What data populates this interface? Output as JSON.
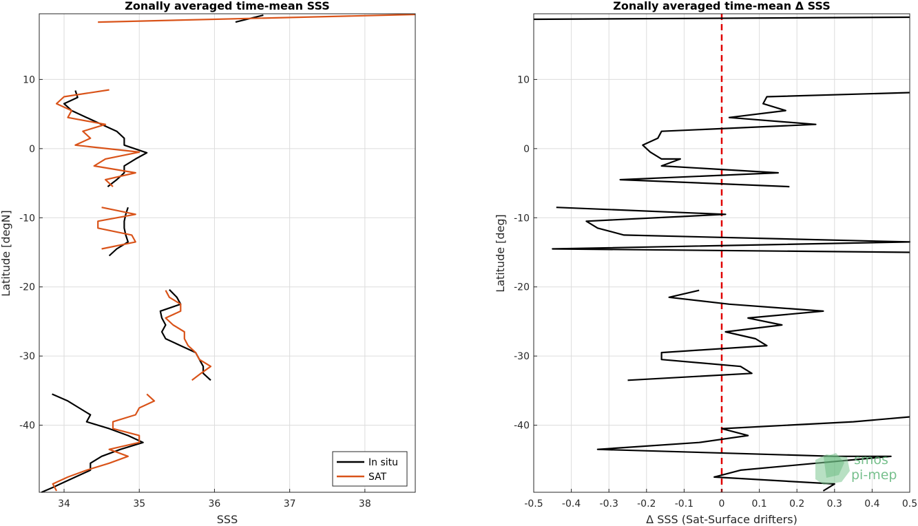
{
  "chart_data": [
    {
      "type": "line",
      "title": "Zonally averaged time-mean SSS",
      "xlabel": "SSS",
      "ylabel": "Latitude [degN]",
      "xlim": [
        33.67,
        38.67
      ],
      "ylim": [
        -49.7,
        19.5
      ],
      "xticks": [
        34,
        35,
        36,
        37,
        38
      ],
      "xtick_labels": [
        "34",
        "35",
        "36",
        "37",
        "38"
      ],
      "yticks": [
        -40,
        -30,
        -20,
        -10,
        0,
        10
      ],
      "ytick_labels": [
        "-40",
        "-30",
        "-20",
        "-10",
        "0",
        "10"
      ],
      "grid": true,
      "legend": {
        "placement": "bottom-right",
        "entries": [
          "In situ",
          "SAT"
        ]
      },
      "series": [
        {
          "name": "In situ",
          "color": "#000000",
          "segments": [
            [
              [
                36.28,
                18.3
              ],
              [
                36.65,
                19.3
              ]
            ],
            [
              [
                34.15,
                8.4
              ],
              [
                34.18,
                7.4
              ],
              [
                34.0,
                6.5
              ],
              [
                34.1,
                5.5
              ],
              [
                34.3,
                4.5
              ],
              [
                34.5,
                3.5
              ],
              [
                34.7,
                2.5
              ],
              [
                34.8,
                1.5
              ],
              [
                34.8,
                0.5
              ],
              [
                35.1,
                -0.6
              ],
              [
                34.95,
                -1.5
              ],
              [
                34.8,
                -2.5
              ],
              [
                34.8,
                -3.5
              ],
              [
                34.7,
                -4.5
              ],
              [
                34.58,
                -5.5
              ]
            ],
            [
              [
                34.85,
                -8.5
              ],
              [
                34.82,
                -9.5
              ],
              [
                34.8,
                -10.5
              ],
              [
                34.8,
                -11.5
              ],
              [
                34.82,
                -12.5
              ],
              [
                34.85,
                -13.5
              ],
              [
                34.7,
                -14.5
              ],
              [
                34.6,
                -15.5
              ]
            ],
            [
              [
                35.4,
                -20.4
              ],
              [
                35.5,
                -21.5
              ],
              [
                35.55,
                -22.5
              ],
              [
                35.28,
                -23.5
              ],
              [
                35.3,
                -24.5
              ],
              [
                35.35,
                -25.5
              ],
              [
                35.3,
                -26.5
              ],
              [
                35.35,
                -27.5
              ],
              [
                35.55,
                -28.5
              ],
              [
                35.75,
                -29.5
              ],
              [
                35.8,
                -30.5
              ],
              [
                35.85,
                -31.5
              ],
              [
                35.85,
                -32.5
              ],
              [
                35.95,
                -33.5
              ]
            ],
            [
              [
                33.84,
                -35.5
              ],
              [
                34.05,
                -36.5
              ],
              [
                34.2,
                -37.5
              ],
              [
                34.35,
                -38.5
              ],
              [
                34.3,
                -39.5
              ],
              [
                34.6,
                -40.5
              ],
              [
                34.85,
                -41.5
              ],
              [
                35.05,
                -42.5
              ],
              [
                34.75,
                -43.5
              ],
              [
                34.5,
                -44.5
              ],
              [
                34.35,
                -45.5
              ],
              [
                34.35,
                -46.5
              ],
              [
                34.15,
                -47.5
              ],
              [
                33.95,
                -48.5
              ],
              [
                33.85,
                -49.0
              ],
              [
                33.7,
                -49.7
              ]
            ]
          ]
        },
        {
          "name": "SAT",
          "color": "#d95319",
          "segments": [
            [
              [
                34.45,
                18.3
              ],
              [
                38.7,
                19.4
              ]
            ],
            [
              [
                34.6,
                8.5
              ],
              [
                34.0,
                7.5
              ],
              [
                33.9,
                6.5
              ],
              [
                34.1,
                5.5
              ],
              [
                34.05,
                4.5
              ],
              [
                34.55,
                3.5
              ],
              [
                34.25,
                2.5
              ],
              [
                34.35,
                1.5
              ],
              [
                34.15,
                0.5
              ],
              [
                35.0,
                -0.5
              ],
              [
                34.55,
                -1.5
              ],
              [
                34.4,
                -2.5
              ],
              [
                34.95,
                -3.5
              ],
              [
                34.55,
                -4.5
              ],
              [
                34.65,
                -5.5
              ]
            ],
            [
              [
                34.5,
                -8.5
              ],
              [
                34.95,
                -9.5
              ],
              [
                34.45,
                -10.5
              ],
              [
                34.45,
                -11.5
              ],
              [
                34.9,
                -12.5
              ],
              [
                34.95,
                -13.5
              ],
              [
                34.5,
                -14.5
              ]
            ],
            [
              [
                35.35,
                -20.5
              ],
              [
                35.4,
                -21.5
              ],
              [
                35.55,
                -22.5
              ],
              [
                35.55,
                -23.5
              ],
              [
                35.35,
                -24.5
              ],
              [
                35.45,
                -25.5
              ],
              [
                35.6,
                -26.5
              ],
              [
                35.6,
                -27.5
              ],
              [
                35.65,
                -28.5
              ],
              [
                35.75,
                -29.5
              ],
              [
                35.8,
                -30.5
              ],
              [
                35.95,
                -31.5
              ],
              [
                35.82,
                -32.5
              ],
              [
                35.7,
                -33.5
              ]
            ],
            [
              [
                35.1,
                -35.5
              ],
              [
                35.2,
                -36.5
              ],
              [
                35.0,
                -37.5
              ],
              [
                34.95,
                -38.5
              ],
              [
                34.65,
                -39.5
              ],
              [
                34.65,
                -40.5
              ],
              [
                35.0,
                -41.5
              ],
              [
                35.0,
                -42.5
              ],
              [
                34.6,
                -43.5
              ],
              [
                34.85,
                -44.5
              ],
              [
                34.6,
                -45.5
              ],
              [
                34.3,
                -46.5
              ],
              [
                34.05,
                -47.5
              ],
              [
                33.85,
                -48.5
              ],
              [
                33.9,
                -49.5
              ]
            ]
          ]
        }
      ]
    },
    {
      "type": "line",
      "title": "Zonally averaged time-mean Δ SSS",
      "xlabel": "Δ SSS (Sat-Surface drifters)",
      "ylabel": "Latitude [deg]",
      "xlim": [
        -0.5,
        0.5
      ],
      "ylim": [
        -49.7,
        19.5
      ],
      "xticks": [
        -0.5,
        -0.4,
        -0.3,
        -0.2,
        -0.1,
        0,
        0.1,
        0.2,
        0.3,
        0.4,
        0.5
      ],
      "xtick_labels": [
        "-0.5",
        "-0.4",
        "-0.3",
        "-0.2",
        "-0.1",
        "0",
        "0.1",
        "0.2",
        "0.3",
        "0.4",
        "0.5"
      ],
      "yticks": [
        -40,
        -30,
        -20,
        -10,
        0,
        10
      ],
      "ytick_labels": [
        "-40",
        "-30",
        "-20",
        "-10",
        "0",
        "10"
      ],
      "grid": true,
      "reference_line": {
        "x": 0,
        "color": "#e00000",
        "style": "dashed"
      },
      "series": [
        {
          "name": "",
          "color": "#000000",
          "segments": [
            [
              [
                -0.5,
                18.7
              ],
              [
                0.5,
                19.0
              ]
            ],
            [
              [
                0.5,
                8.1
              ],
              [
                0.12,
                7.5
              ],
              [
                0.11,
                6.5
              ],
              [
                0.17,
                5.5
              ],
              [
                0.02,
                4.5
              ],
              [
                0.25,
                3.5
              ],
              [
                -0.16,
                2.5
              ],
              [
                -0.17,
                1.5
              ],
              [
                -0.21,
                0.5
              ],
              [
                -0.19,
                -0.5
              ],
              [
                -0.16,
                -1.5
              ],
              [
                -0.11,
                -1.5
              ],
              [
                -0.16,
                -2.5
              ],
              [
                0.15,
                -3.5
              ],
              [
                -0.27,
                -4.5
              ],
              [
                0.18,
                -5.5
              ]
            ],
            [
              [
                -0.44,
                -8.5
              ],
              [
                0.01,
                -9.5
              ],
              [
                -0.36,
                -10.5
              ],
              [
                -0.33,
                -11.5
              ],
              [
                -0.26,
                -12.5
              ],
              [
                0.5,
                -13.5
              ],
              [
                -0.45,
                -14.5
              ],
              [
                0.5,
                -15.0
              ]
            ],
            [
              [
                -0.06,
                -20.5
              ],
              [
                -0.14,
                -21.5
              ],
              [
                0.02,
                -22.5
              ],
              [
                0.27,
                -23.5
              ],
              [
                0.07,
                -24.5
              ],
              [
                0.16,
                -25.5
              ],
              [
                0.01,
                -26.5
              ],
              [
                0.09,
                -27.5
              ],
              [
                0.12,
                -28.5
              ],
              [
                -0.16,
                -29.5
              ],
              [
                -0.16,
                -30.5
              ],
              [
                0.05,
                -31.5
              ],
              [
                0.08,
                -32.5
              ],
              [
                -0.25,
                -33.5
              ]
            ],
            [
              [
                0.5,
                -38.8
              ],
              [
                0.35,
                -39.5
              ],
              [
                0.0,
                -40.5
              ],
              [
                0.07,
                -41.5
              ],
              [
                -0.06,
                -42.5
              ],
              [
                -0.33,
                -43.5
              ],
              [
                0.3,
                -44.5
              ],
              [
                0.45,
                -44.5
              ],
              [
                0.05,
                -46.5
              ],
              [
                -0.02,
                -47.5
              ],
              [
                0.3,
                -48.5
              ],
              [
                0.27,
                -49.5
              ]
            ]
          ]
        }
      ]
    }
  ],
  "watermark": {
    "line1": "smos",
    "line2": "pi-mep",
    "color": "#5fb578"
  }
}
